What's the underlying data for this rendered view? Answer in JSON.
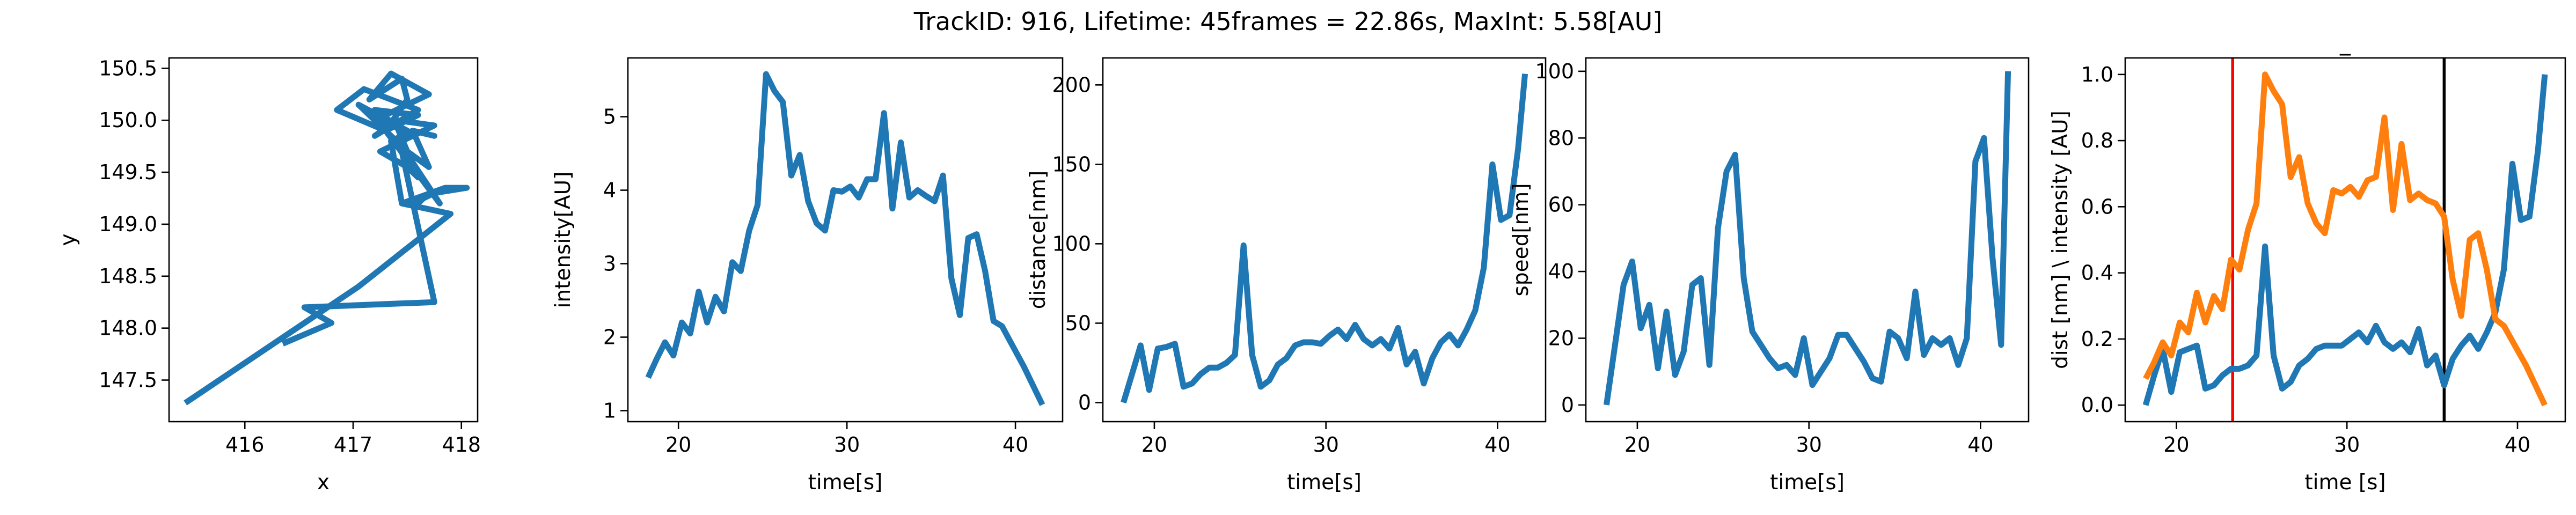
{
  "suptitle": "TrackID: 916, Lifetime: 45frames = 22.86s, MaxInt: 5.58[AU]",
  "colors": {
    "blue": "#1f77b4",
    "orange": "#ff7f0e",
    "red": "#ff0000",
    "black": "#000000"
  },
  "chart_data": [
    {
      "type": "line",
      "title": "",
      "xlabel": "x",
      "ylabel": "y",
      "xlim": [
        415.3,
        418.15
      ],
      "ylim": [
        147.1,
        150.6
      ],
      "xticks": [
        416,
        417,
        418
      ],
      "xtick_labels": [
        "416",
        "417",
        "418"
      ],
      "yticks": [
        147.5,
        148.0,
        148.5,
        149.0,
        149.5,
        150.0,
        150.5
      ],
      "ytick_labels": [
        "147.5",
        "148.0",
        "148.5",
        "149.0",
        "149.5",
        "150.0",
        "150.5"
      ],
      "series": [
        {
          "color": "#1f77b4",
          "x": [
            415.45,
            417.05,
            417.9,
            417.45,
            417.85,
            418.05,
            417.75,
            417.65,
            417.6,
            417.45,
            417.35,
            417.55,
            417.75,
            417.55,
            417.7,
            417.5,
            417.4,
            417.2,
            417.6,
            417.3,
            417.5,
            417.45,
            417.15,
            417.35,
            417.7,
            417.2,
            417.5,
            417.05,
            417.45,
            417.8,
            417.3,
            416.85,
            417.1,
            417.6,
            417.2,
            417.4,
            417.75,
            417.25,
            417.5,
            417.6,
            417.45,
            417.75,
            416.55,
            416.8,
            416.35
          ],
          "y": [
            147.28,
            148.4,
            149.1,
            149.2,
            149.35,
            149.35,
            149.3,
            149.25,
            149.2,
            149.2,
            149.8,
            149.9,
            149.85,
            149.9,
            149.55,
            149.7,
            149.95,
            150.1,
            150.05,
            149.9,
            150.2,
            150.4,
            150.2,
            150.45,
            150.25,
            150.0,
            149.9,
            150.15,
            149.75,
            149.2,
            149.9,
            150.1,
            150.3,
            150.1,
            149.85,
            150.0,
            149.95,
            149.7,
            149.55,
            149.45,
            149.7,
            148.25,
            148.2,
            148.05,
            147.85
          ]
        }
      ]
    },
    {
      "type": "line",
      "title": "",
      "xlabel": "time[s]",
      "ylabel": "intensity[AU]",
      "xlim": [
        17.0,
        42.8
      ],
      "ylim": [
        0.85,
        5.8
      ],
      "xticks": [
        20,
        30,
        40
      ],
      "xtick_labels": [
        "20",
        "30",
        "40"
      ],
      "yticks": [
        1,
        2,
        3,
        4,
        5
      ],
      "ytick_labels": [
        "1",
        "2",
        "3",
        "4",
        "5"
      ],
      "series": [
        {
          "color": "#1f77b4",
          "x": [
            18.2,
            18.7,
            19.2,
            19.7,
            20.2,
            20.7,
            21.2,
            21.7,
            22.2,
            22.7,
            23.2,
            23.7,
            24.2,
            24.7,
            25.2,
            25.7,
            26.2,
            26.7,
            27.2,
            27.7,
            28.2,
            28.7,
            29.2,
            29.7,
            30.2,
            30.7,
            31.2,
            31.7,
            32.2,
            32.7,
            33.2,
            33.7,
            34.2,
            34.7,
            35.2,
            35.7,
            36.2,
            36.7,
            37.2,
            37.7,
            38.2,
            38.7,
            39.2,
            40.5,
            41.6
          ],
          "y": [
            1.45,
            1.7,
            1.93,
            1.75,
            2.2,
            2.05,
            2.62,
            2.2,
            2.55,
            2.35,
            3.02,
            2.9,
            3.45,
            3.8,
            5.58,
            5.35,
            5.2,
            4.2,
            4.48,
            3.85,
            3.55,
            3.45,
            4.0,
            3.98,
            4.05,
            3.9,
            4.15,
            4.15,
            5.05,
            3.75,
            4.65,
            3.9,
            4.0,
            3.92,
            3.85,
            4.2,
            2.8,
            2.3,
            3.35,
            3.4,
            2.9,
            2.22,
            2.15,
            1.6,
            1.08
          ]
        }
      ]
    },
    {
      "type": "line",
      "title": "",
      "xlabel": "time[s]",
      "ylabel": "distance[nm]",
      "xlim": [
        17.0,
        42.8
      ],
      "ylim": [
        -12,
        217
      ],
      "xticks": [
        20,
        30,
        40
      ],
      "xtick_labels": [
        "20",
        "30",
        "40"
      ],
      "yticks": [
        0,
        50,
        100,
        150,
        200
      ],
      "ytick_labels": [
        "0",
        "50",
        "100",
        "150",
        "200"
      ],
      "series": [
        {
          "color": "#1f77b4",
          "x": [
            18.2,
            18.7,
            19.2,
            19.7,
            20.2,
            20.7,
            21.2,
            21.7,
            22.2,
            22.7,
            23.2,
            23.7,
            24.2,
            24.7,
            25.2,
            25.7,
            26.2,
            26.7,
            27.2,
            27.7,
            28.2,
            28.7,
            29.2,
            29.7,
            30.2,
            30.7,
            31.2,
            31.7,
            32.2,
            32.7,
            33.2,
            33.7,
            34.2,
            34.7,
            35.2,
            35.7,
            36.2,
            36.7,
            37.2,
            37.7,
            38.2,
            38.7,
            39.2,
            39.7,
            40.2,
            40.7,
            41.2,
            41.6
          ],
          "y": [
            0,
            18,
            36,
            8,
            34,
            35,
            37,
            10,
            12,
            18,
            22,
            22,
            25,
            30,
            99,
            30,
            10,
            14,
            24,
            28,
            36,
            38,
            38,
            37,
            42,
            46,
            40,
            49,
            40,
            36,
            40,
            34,
            47,
            24,
            32,
            12,
            28,
            38,
            43,
            36,
            46,
            58,
            85,
            150,
            115,
            118,
            160,
            207
          ]
        }
      ]
    },
    {
      "type": "line",
      "title": "",
      "xlabel": "time[s]",
      "ylabel": "speed[nm]",
      "xlim": [
        17.0,
        42.8
      ],
      "ylim": [
        -5,
        104
      ],
      "xticks": [
        20,
        30,
        40
      ],
      "xtick_labels": [
        "20",
        "30",
        "40"
      ],
      "yticks": [
        0,
        20,
        40,
        60,
        80,
        100
      ],
      "ytick_labels": [
        "0",
        "20",
        "40",
        "60",
        "80",
        "100"
      ],
      "series": [
        {
          "color": "#1f77b4",
          "x": [
            18.2,
            18.7,
            19.2,
            19.7,
            20.2,
            20.7,
            21.2,
            21.7,
            22.2,
            22.7,
            23.2,
            23.7,
            24.2,
            24.7,
            25.2,
            25.7,
            26.2,
            26.7,
            27.2,
            27.7,
            28.2,
            28.7,
            29.2,
            29.7,
            30.2,
            30.7,
            31.2,
            31.7,
            32.2,
            32.7,
            33.2,
            33.7,
            34.2,
            34.7,
            35.2,
            35.7,
            36.2,
            36.7,
            37.2,
            37.7,
            38.2,
            38.7,
            39.2,
            39.7,
            40.2,
            40.7,
            41.2,
            41.6
          ],
          "y": [
            0,
            18,
            36,
            43,
            23,
            30,
            11,
            28,
            9,
            16,
            36,
            38,
            12,
            53,
            70,
            75,
            38,
            22,
            18,
            14,
            11,
            12,
            9,
            20,
            6,
            10,
            14,
            21,
            21,
            17,
            13,
            8,
            7,
            22,
            20,
            14,
            34,
            15,
            20,
            18,
            20,
            12,
            20,
            73,
            80,
            44,
            18,
            100
          ]
        }
      ]
    },
    {
      "type": "line",
      "title": "_",
      "xlabel": "time [s]",
      "ylabel": "dist [nm] \\ intensity [AU]",
      "xlim": [
        17.0,
        42.8
      ],
      "ylim": [
        -0.05,
        1.05
      ],
      "xticks": [
        20,
        30,
        40
      ],
      "xtick_labels": [
        "20",
        "30",
        "40"
      ],
      "yticks": [
        0.0,
        0.2,
        0.4,
        0.6,
        0.8,
        1.0
      ],
      "ytick_labels": [
        "0.0",
        "0.2",
        "0.4",
        "0.6",
        "0.8",
        "1.0"
      ],
      "vlines": [
        {
          "x": 23.3,
          "color": "#ff0000"
        },
        {
          "x": 35.7,
          "color": "#000000"
        }
      ],
      "series": [
        {
          "color": "#1f77b4",
          "x": [
            18.2,
            18.7,
            19.2,
            19.7,
            20.2,
            20.7,
            21.2,
            21.7,
            22.2,
            22.7,
            23.2,
            23.7,
            24.2,
            24.7,
            25.2,
            25.7,
            26.2,
            26.7,
            27.2,
            27.7,
            28.2,
            28.7,
            29.2,
            29.7,
            30.2,
            30.7,
            31.2,
            31.7,
            32.2,
            32.7,
            33.2,
            33.7,
            34.2,
            34.7,
            35.2,
            35.7,
            36.2,
            36.7,
            37.2,
            37.7,
            38.2,
            38.7,
            39.2,
            39.7,
            40.2,
            40.7,
            41.2,
            41.6
          ],
          "y": [
            0.0,
            0.09,
            0.17,
            0.04,
            0.16,
            0.17,
            0.18,
            0.05,
            0.06,
            0.09,
            0.11,
            0.11,
            0.12,
            0.15,
            0.48,
            0.15,
            0.05,
            0.07,
            0.12,
            0.14,
            0.17,
            0.18,
            0.18,
            0.18,
            0.2,
            0.22,
            0.19,
            0.24,
            0.19,
            0.17,
            0.19,
            0.16,
            0.23,
            0.12,
            0.15,
            0.06,
            0.14,
            0.18,
            0.21,
            0.17,
            0.22,
            0.28,
            0.41,
            0.73,
            0.56,
            0.57,
            0.77,
            1.0
          ]
        },
        {
          "color": "#ff7f0e",
          "x": [
            18.2,
            18.7,
            19.2,
            19.7,
            20.2,
            20.7,
            21.2,
            21.7,
            22.2,
            22.7,
            23.2,
            23.7,
            24.2,
            24.7,
            25.2,
            25.7,
            26.2,
            26.7,
            27.2,
            27.7,
            28.2,
            28.7,
            29.2,
            29.7,
            30.2,
            30.7,
            31.2,
            31.7,
            32.2,
            32.7,
            33.2,
            33.7,
            34.2,
            34.7,
            35.2,
            35.7,
            36.2,
            36.7,
            37.2,
            37.7,
            38.2,
            38.7,
            39.2,
            40.5,
            41.6
          ],
          "y": [
            0.08,
            0.13,
            0.19,
            0.15,
            0.25,
            0.22,
            0.34,
            0.25,
            0.33,
            0.29,
            0.44,
            0.41,
            0.53,
            0.61,
            1.0,
            0.95,
            0.91,
            0.69,
            0.75,
            0.61,
            0.55,
            0.52,
            0.65,
            0.64,
            0.66,
            0.63,
            0.68,
            0.69,
            0.87,
            0.59,
            0.79,
            0.62,
            0.64,
            0.62,
            0.61,
            0.57,
            0.38,
            0.27,
            0.5,
            0.52,
            0.41,
            0.26,
            0.24,
            0.12,
            0.0
          ]
        }
      ]
    }
  ]
}
